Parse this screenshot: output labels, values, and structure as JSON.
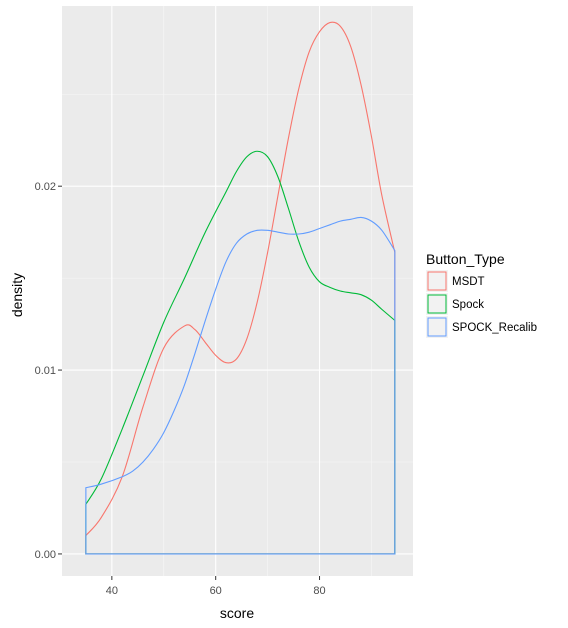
{
  "chart_data": {
    "type": "area",
    "title": "",
    "xlabel": "score",
    "ylabel": "density",
    "xlim": [
      30.4,
      98.0
    ],
    "ylim": [
      -0.0012,
      0.0298
    ],
    "x_ticks": [
      40,
      60,
      80
    ],
    "y_ticks": [
      0.0,
      0.01,
      0.02
    ],
    "y_tick_labels": [
      "0.00",
      "0.01",
      "0.02"
    ],
    "grid": true,
    "background": "#ebebeb",
    "legend": {
      "title": "Button_Type",
      "placement": "right"
    },
    "series": [
      {
        "name": "MSDT",
        "color": "#f8766d",
        "x": [
          35,
          38,
          42,
          46,
          50,
          54,
          56,
          58,
          60,
          62,
          64,
          66,
          68,
          70,
          72,
          74,
          76,
          78,
          80,
          82,
          84,
          86,
          88,
          90,
          92,
          94.5
        ],
        "y": [
          0.001,
          0.002,
          0.0042,
          0.008,
          0.0112,
          0.0124,
          0.0122,
          0.0115,
          0.0108,
          0.0104,
          0.0106,
          0.0117,
          0.0137,
          0.0164,
          0.0195,
          0.0226,
          0.0253,
          0.0273,
          0.0284,
          0.0289,
          0.0287,
          0.0276,
          0.0255,
          0.0227,
          0.0195,
          0.0164
        ]
      },
      {
        "name": "Spock",
        "color": "#00ba38",
        "x": [
          35,
          38,
          42,
          46,
          50,
          54,
          58,
          62,
          64,
          66,
          68,
          70,
          72,
          74,
          76,
          78,
          80,
          82,
          84,
          86,
          88,
          90,
          92,
          94.5
        ],
        "y": [
          0.0027,
          0.0041,
          0.0068,
          0.0097,
          0.0126,
          0.015,
          0.0175,
          0.0197,
          0.0208,
          0.0216,
          0.0219,
          0.0216,
          0.0205,
          0.0188,
          0.017,
          0.0156,
          0.0148,
          0.0145,
          0.0143,
          0.0142,
          0.0141,
          0.0138,
          0.0133,
          0.0127
        ]
      },
      {
        "name": "SPOCK_Recalib",
        "color": "#619cff",
        "x": [
          35,
          38,
          42,
          44,
          46,
          48,
          50,
          52,
          54,
          56,
          58,
          60,
          62,
          64,
          66,
          68,
          70,
          72,
          74,
          76,
          78,
          80,
          82,
          84,
          86,
          88,
          90,
          92,
          94.5
        ],
        "y": [
          0.0036,
          0.0038,
          0.0042,
          0.0045,
          0.005,
          0.0057,
          0.0066,
          0.0078,
          0.0092,
          0.0109,
          0.0127,
          0.0144,
          0.0159,
          0.0169,
          0.0174,
          0.0176,
          0.0176,
          0.0175,
          0.0174,
          0.0174,
          0.0175,
          0.0177,
          0.0179,
          0.0181,
          0.0182,
          0.0183,
          0.0181,
          0.0176,
          0.0165
        ]
      }
    ]
  }
}
